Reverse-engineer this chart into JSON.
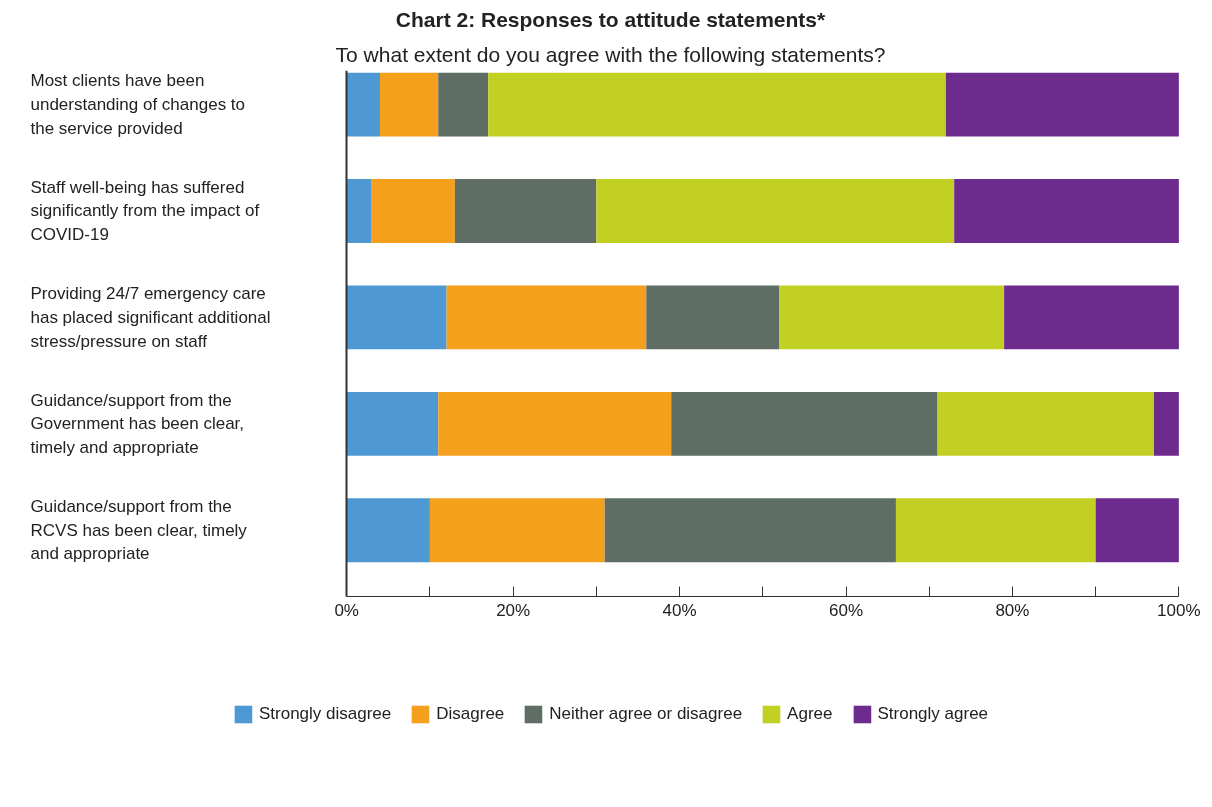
{
  "chart_data": {
    "type": "bar",
    "orientation": "horizontal",
    "stacked": true,
    "title": "Chart 2: Responses to attitude statements*",
    "subtitle": "To what extent do you agree with the following statements?",
    "categories": [
      "Most clients have been\nunderstanding of changes to\nthe service provided",
      "Staff well-being has suffered\nsignificantly from the impact of\nCOVID-19",
      "Providing 24/7 emergency care\nhas placed significant additional\nstress/pressure on staff",
      "Guidance/support from the\nGovernment has been clear,\ntimely and appropriate",
      "Guidance/support from the\nRCVS has been clear, timely\nand appropriate"
    ],
    "series": [
      {
        "name": "Strongly disagree",
        "color": "#4e98d3",
        "values": [
          4,
          3,
          12,
          11,
          10
        ]
      },
      {
        "name": "Disagree",
        "color": "#f5a01d",
        "values": [
          7,
          10,
          24,
          28,
          21
        ]
      },
      {
        "name": "Neither agree or disagree",
        "color": "#5e6e64",
        "values": [
          6,
          17,
          16,
          32,
          35
        ]
      },
      {
        "name": "Agree",
        "color": "#c2cf23",
        "values": [
          55,
          43,
          27,
          26,
          24
        ]
      },
      {
        "name": "Strongly agree",
        "color": "#6e2b8e",
        "values": [
          28,
          27,
          21,
          3,
          10
        ]
      }
    ],
    "xlim": [
      0,
      100
    ],
    "xticks": [
      {
        "value": 0,
        "label": "0%"
      },
      {
        "value": 10,
        "label": null
      },
      {
        "value": 20,
        "label": "20%"
      },
      {
        "value": 30,
        "label": null
      },
      {
        "value": 40,
        "label": "40%"
      },
      {
        "value": 50,
        "label": null
      },
      {
        "value": 60,
        "label": "60%"
      },
      {
        "value": 70,
        "label": null
      },
      {
        "value": 80,
        "label": "80%"
      },
      {
        "value": 90,
        "label": null
      },
      {
        "value": 100,
        "label": "100%"
      }
    ],
    "grid": false,
    "legend": "bottom"
  }
}
